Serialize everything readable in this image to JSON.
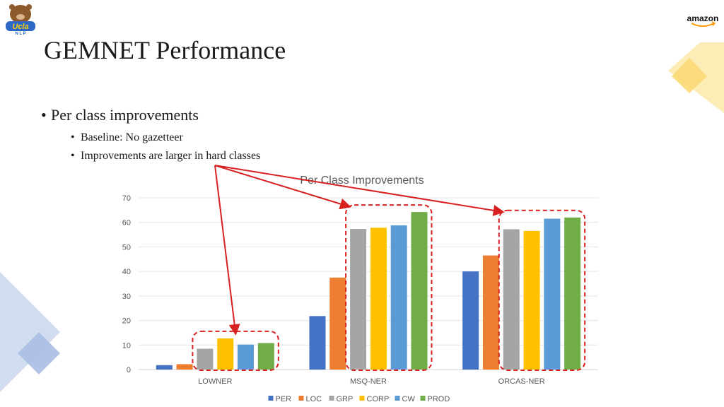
{
  "slide": {
    "title": "GEMNET Performance",
    "bullets": [
      {
        "text": "Per class improvements",
        "level": 1
      },
      {
        "text": "Baseline: No gazetteer",
        "level": 2
      },
      {
        "text": "Improvements are larger in hard classes",
        "level": 2
      }
    ],
    "logo_left": {
      "icon": "bruin-mascot-logo-icon"
    },
    "logo_right": {
      "text": "amazon",
      "icon": "amazon-smile-icon"
    }
  },
  "chart_data": {
    "type": "bar",
    "title": "Per Class Improvements",
    "xlabel": "",
    "ylabel": "",
    "ylim": [
      0,
      70
    ],
    "yticks": [
      0,
      10,
      20,
      30,
      40,
      50,
      60,
      70
    ],
    "grid": true,
    "legend_position": "bottom",
    "categories": [
      "LOWNER",
      "MSQ-NER",
      "ORCAS-NER"
    ],
    "series": [
      {
        "name": "PER",
        "color": "#4472C4",
        "values": [
          1.8,
          21.8,
          40.0
        ]
      },
      {
        "name": "LOC",
        "color": "#ED7D31",
        "values": [
          2.2,
          37.5,
          46.5
        ]
      },
      {
        "name": "GRP",
        "color": "#A5A5A5",
        "values": [
          8.5,
          57.3,
          57.2
        ]
      },
      {
        "name": "CORP",
        "color": "#FFC000",
        "values": [
          12.7,
          57.8,
          56.5
        ]
      },
      {
        "name": "CW",
        "color": "#5B9BD5",
        "values": [
          10.2,
          58.8,
          61.5
        ]
      },
      {
        "name": "PROD",
        "color": "#70AD47",
        "values": [
          10.8,
          64.2,
          62.0
        ]
      }
    ],
    "highlight_color": "#D92020"
  }
}
